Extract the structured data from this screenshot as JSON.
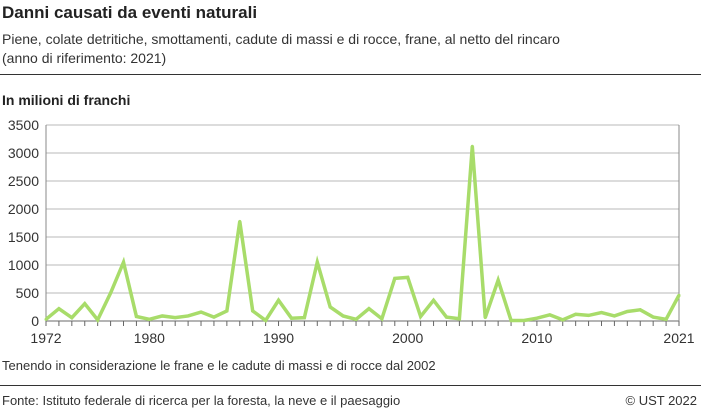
{
  "header": {
    "title": "Danni causati da eventi naturali",
    "subtitle_line1": "Piene, colate detritiche, smottamenti, cadute di massi e di rocce, frane, al netto del rincaro",
    "subtitle_line2": "(anno di riferimento: 2021)"
  },
  "footer": {
    "note": "Tenendo in considerazione le frane e le cadute di massi e di rocce dal 2002",
    "source": "Fonte: Istituto federale di ricerca per la foresta, la neve e il paesaggio",
    "copyright": "© UST 2022"
  },
  "chart_data": {
    "type": "line",
    "title": "Danni causati da eventi naturali",
    "ylabel": "In milioni di franchi",
    "xlabel": "",
    "xlim": [
      1972,
      2021
    ],
    "ylim": [
      0,
      3500
    ],
    "yticks": [
      0,
      500,
      1000,
      1500,
      2000,
      2500,
      3000,
      3500
    ],
    "xtick_labels": [
      1972,
      1980,
      1990,
      2000,
      2010,
      2021
    ],
    "grid": "horizontal",
    "color": "#a8dc6a",
    "x": [
      1972,
      1973,
      1974,
      1975,
      1976,
      1977,
      1978,
      1979,
      1980,
      1981,
      1982,
      1983,
      1984,
      1985,
      1986,
      1987,
      1988,
      1989,
      1990,
      1991,
      1992,
      1993,
      1994,
      1995,
      1996,
      1997,
      1998,
      1999,
      2000,
      2001,
      2002,
      2003,
      2004,
      2005,
      2006,
      2007,
      2008,
      2009,
      2010,
      2011,
      2012,
      2013,
      2014,
      2015,
      2016,
      2017,
      2018,
      2019,
      2020,
      2021
    ],
    "values": [
      30,
      220,
      60,
      310,
      20,
      500,
      1050,
      80,
      30,
      90,
      60,
      90,
      160,
      70,
      180,
      1780,
      180,
      10,
      370,
      50,
      60,
      1050,
      250,
      90,
      30,
      220,
      40,
      760,
      780,
      80,
      370,
      70,
      40,
      3120,
      60,
      730,
      10,
      10,
      50,
      110,
      20,
      120,
      100,
      150,
      90,
      170,
      200,
      70,
      30,
      460
    ]
  }
}
